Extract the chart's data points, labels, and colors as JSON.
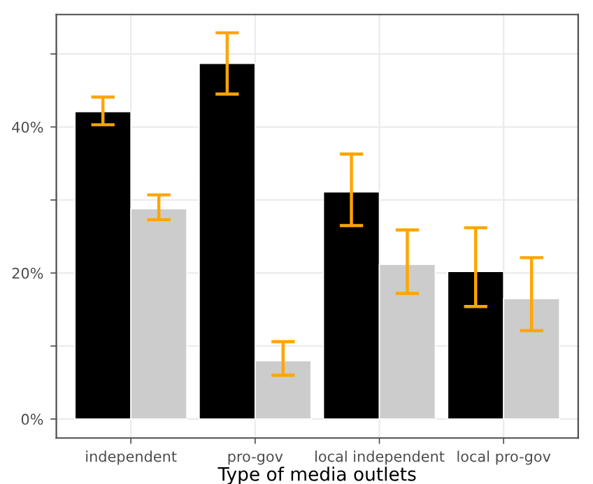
{
  "chart_data": {
    "type": "bar",
    "xlabel": "Type of media outlets",
    "categories": [
      "independent",
      "pro-gov",
      "local independent",
      "local pro-gov"
    ],
    "series": [
      {
        "color": "#000000",
        "values": [
          42.1,
          48.7,
          31.1,
          20.2
        ],
        "errors": [
          [
            40.3,
            44.1
          ],
          [
            44.5,
            52.9
          ],
          [
            26.5,
            36.3
          ],
          [
            15.4,
            26.2
          ]
        ]
      },
      {
        "color": "#cccccc",
        "values": [
          28.8,
          8.0,
          21.2,
          16.5
        ],
        "errors": [
          [
            27.3,
            30.7
          ],
          [
            6.0,
            10.6
          ],
          [
            17.2,
            25.9
          ],
          [
            12.1,
            22.1
          ]
        ]
      }
    ],
    "ylim": [
      -2.6,
      55.4
    ],
    "yticks": [
      {
        "value": 0,
        "label": "0%"
      },
      {
        "value": 10,
        "label": null
      },
      {
        "value": 20,
        "label": "20%"
      },
      {
        "value": 30,
        "label": null
      },
      {
        "value": 40,
        "label": "40%"
      },
      {
        "value": 50,
        "label": null
      }
    ],
    "grid": true
  }
}
